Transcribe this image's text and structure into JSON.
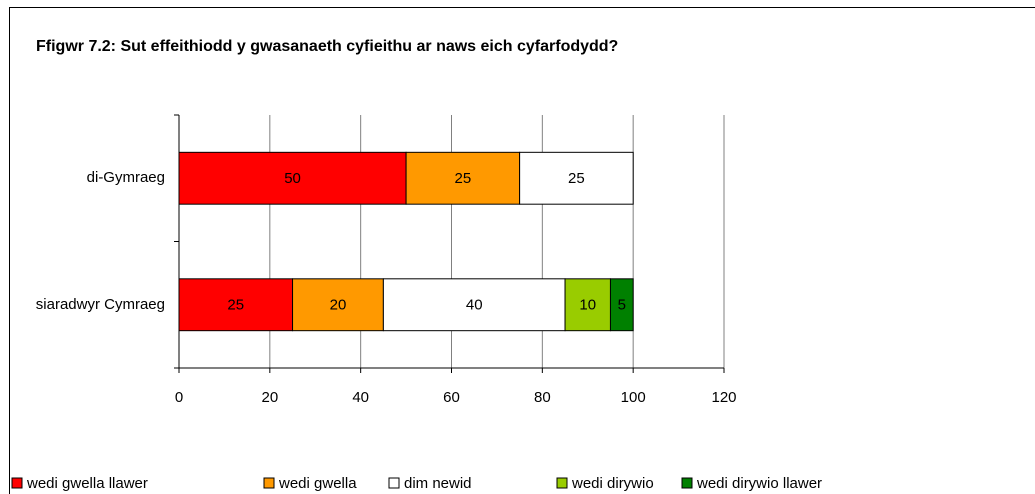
{
  "chart_data": {
    "type": "bar",
    "orientation": "horizontal",
    "stacked": true,
    "title": "Ffigwr 7.2: Sut effeithiodd y gwasanaeth cyfieithu ar naws eich cyfarfodydd?",
    "categories": [
      "di-Gymraeg",
      "siaradwyr Cymraeg"
    ],
    "series": [
      {
        "name": "wedi gwella llawer",
        "color": "#ff0000",
        "values": [
          50,
          25
        ]
      },
      {
        "name": "wedi gwella",
        "color": "#ff9900",
        "values": [
          25,
          20
        ]
      },
      {
        "name": "dim newid",
        "color": "#ffffff",
        "values": [
          25,
          40
        ]
      },
      {
        "name": "wedi dirywio",
        "color": "#99cc00",
        "values": [
          null,
          10
        ]
      },
      {
        "name": "wedi dirywio llawer",
        "color": "#008000",
        "values": [
          null,
          5
        ]
      }
    ],
    "xlim": [
      0,
      120
    ],
    "xticks": [
      0,
      20,
      40,
      60,
      80,
      100,
      120
    ],
    "grid": true,
    "legend": "bottom"
  }
}
